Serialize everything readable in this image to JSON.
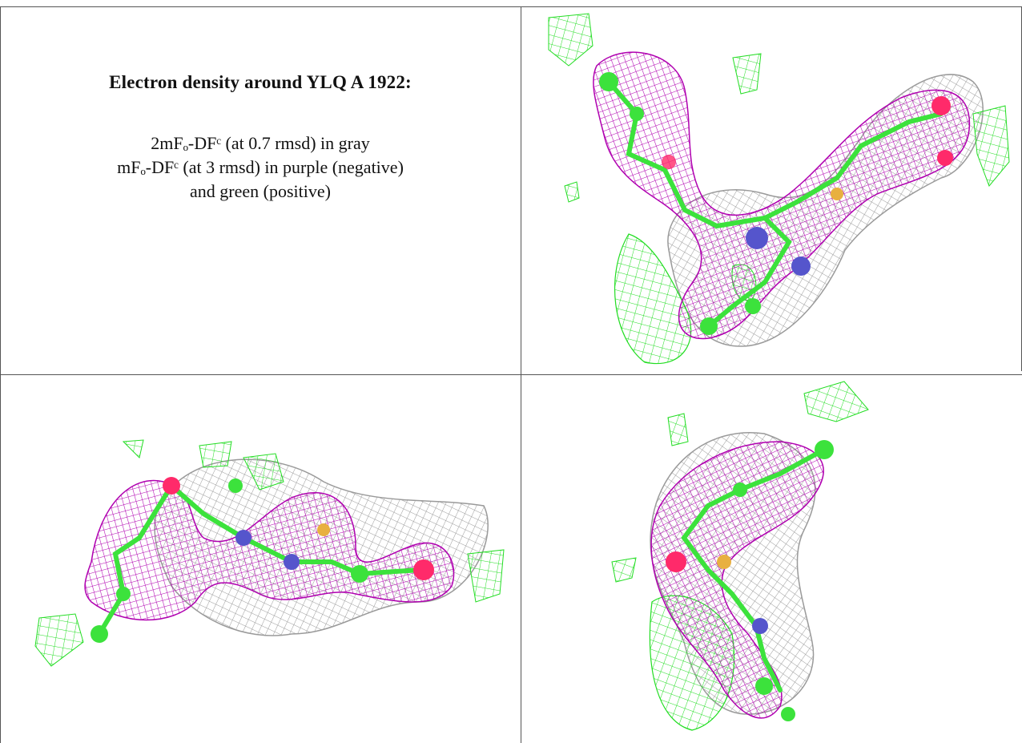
{
  "caption": {
    "title": "Electron density around YLQ A 1922:",
    "line1": "2mFₒ-DFᶜ (at 0.7 rmsd) in gray",
    "line2": "mFₒ-DFᶜ (at 3 rmsd) in purple (negative)",
    "line3": "and green (positive)"
  },
  "colors": {
    "gray_mesh": "#9a9a9a",
    "purple_mesh": "#b000b0",
    "green_mesh": "#22dd22",
    "atom_green": "#3ce23c",
    "atom_red": "#ff2a6a",
    "atom_blue": "#5555cc",
    "atom_yellow": "#e8b040"
  },
  "panels": [
    {
      "name": "view-top-right"
    },
    {
      "name": "view-bottom-left"
    },
    {
      "name": "view-bottom-right"
    }
  ]
}
